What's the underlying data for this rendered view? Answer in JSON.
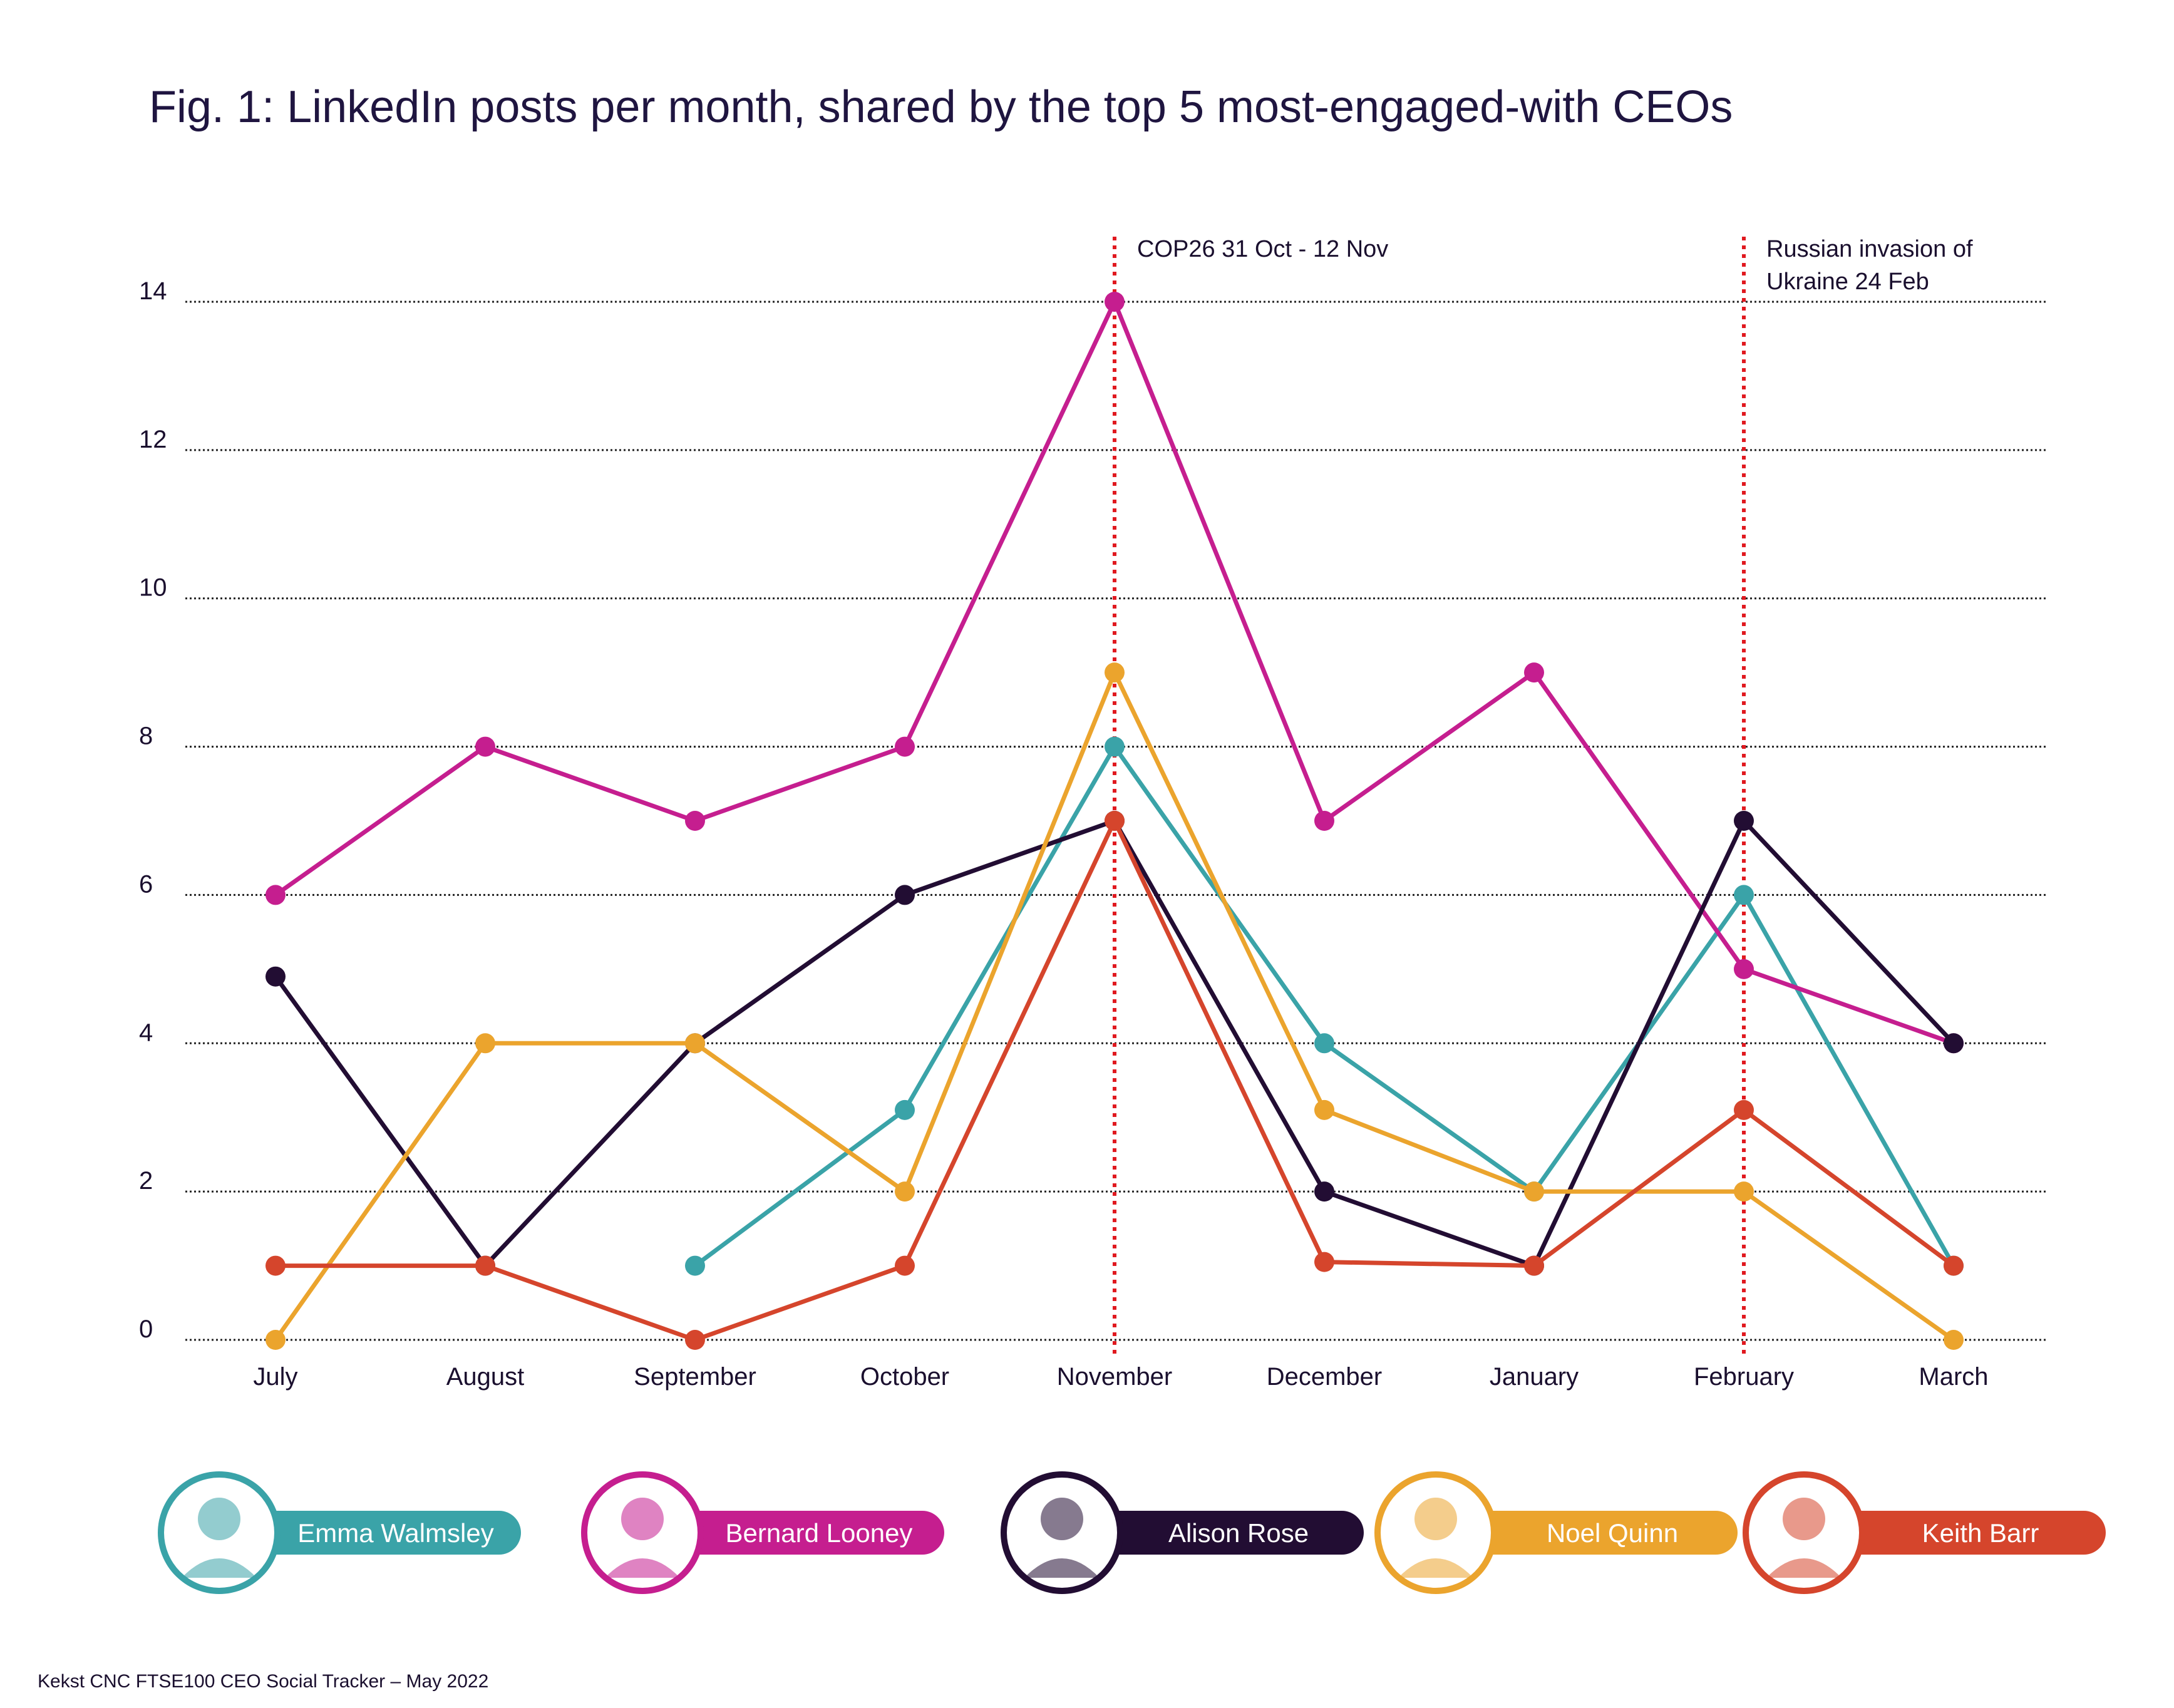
{
  "title": "Fig. 1: LinkedIn posts per month, shared by the top 5 most-engaged-with CEOs",
  "source": "Kekst CNC FTSE100 CEO Social Tracker – May 2022",
  "chart_data": {
    "type": "line",
    "categories": [
      "July",
      "August",
      "September",
      "October",
      "November",
      "December",
      "January",
      "February",
      "March"
    ],
    "ylim": [
      0,
      14
    ],
    "yticks": [
      0,
      2,
      4,
      6,
      8,
      10,
      12,
      14
    ],
    "grid": true,
    "series": [
      {
        "name": "Emma Walmsley",
        "color": "#3aa3a8",
        "values": [
          null,
          null,
          1,
          3.1,
          8,
          4,
          2,
          6,
          1
        ]
      },
      {
        "name": "Bernard Looney",
        "color": "#c51e8f",
        "values": [
          6,
          8,
          7,
          8,
          14,
          7,
          9,
          5,
          4
        ]
      },
      {
        "name": "Alison Rose",
        "color": "#220d33",
        "values": [
          4.9,
          1,
          4,
          6,
          7,
          2,
          1,
          7,
          4
        ]
      },
      {
        "name": "Noel Quinn",
        "color": "#eba42d",
        "values": [
          0,
          4,
          4,
          2,
          9,
          3.1,
          2,
          2,
          0
        ]
      },
      {
        "name": "Keith Barr",
        "color": "#d5452c",
        "values": [
          1,
          1,
          0,
          1,
          7,
          1.05,
          1,
          3.1,
          1
        ]
      }
    ],
    "annotations": [
      {
        "category": "November",
        "lines": [
          "COP26 31 Oct - 12 Nov"
        ],
        "color": "#e0191f"
      },
      {
        "category": "February",
        "lines": [
          "Russian invasion of",
          "Ukraine 24 Feb"
        ],
        "color": "#e0191f"
      }
    ],
    "legend_placement": "bottom"
  }
}
